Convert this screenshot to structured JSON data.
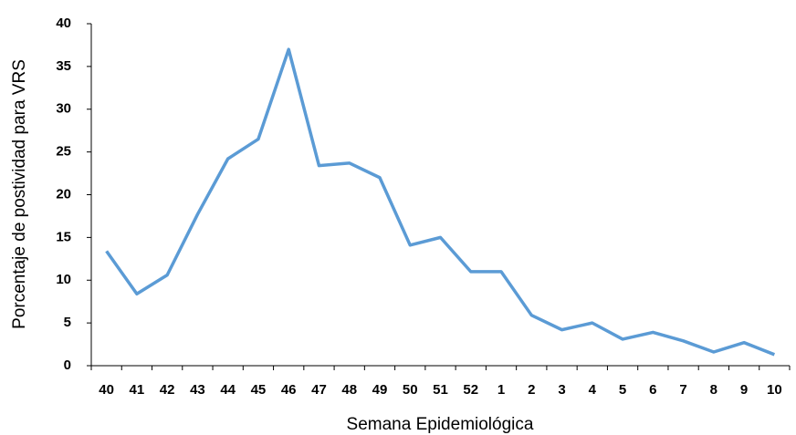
{
  "chart_data": {
    "type": "line",
    "x_label": "Semana Epidemiológica",
    "y_label": "Porcentaje de postividad para VRS",
    "categories": [
      "40",
      "41",
      "42",
      "43",
      "44",
      "45",
      "46",
      "47",
      "48",
      "49",
      "50",
      "51",
      "52",
      "1",
      "2",
      "3",
      "4",
      "5",
      "6",
      "7",
      "8",
      "9",
      "10"
    ],
    "values": [
      13.4,
      8.4,
      10.6,
      17.7,
      24.2,
      26.5,
      37.0,
      23.4,
      23.7,
      22.0,
      14.1,
      15.0,
      11.0,
      11.0,
      5.9,
      4.2,
      5.0,
      3.1,
      3.9,
      2.9,
      1.6,
      2.7,
      1.3
    ],
    "color": "#5b9bd5",
    "ylim": [
      0,
      40
    ],
    "yticks": [
      0,
      5,
      10,
      15,
      20,
      25,
      30,
      35,
      40
    ],
    "grid": false
  }
}
